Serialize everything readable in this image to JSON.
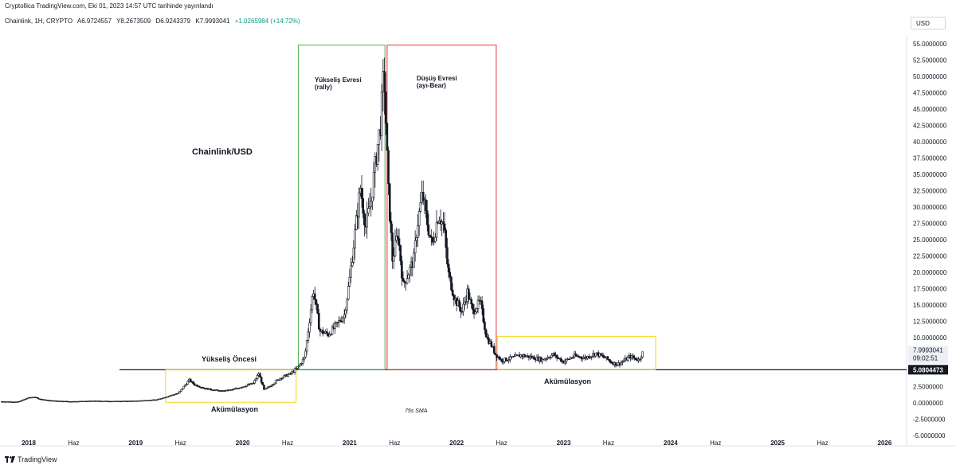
{
  "header": {
    "published": "Cryptollica TradingView.com, Eki 01, 2023 14:57 UTC tarihinde yayınlandı"
  },
  "ohlc": {
    "symbol": "Chainlink, 1H, CRYPTO",
    "open": "A6.9724557",
    "high": "Y8.2673509",
    "low": "D6.9243379",
    "close": "K7.9993041",
    "change": "+1.0265984 (+14.72%)"
  },
  "currency": "USD",
  "footer": {
    "brand": "TradingView"
  },
  "colors": {
    "green_box": "#4caf50",
    "red_box": "#e53935",
    "yellow_box": "#f5d90a",
    "candle": "#131722"
  },
  "chart_data": {
    "type": "candlestick",
    "title": "Chainlink/USD",
    "ylim": [
      -5,
      57
    ],
    "y_ticks": [
      "55.0000000",
      "52.5000000",
      "50.0000000",
      "47.5000000",
      "45.0000000",
      "42.5000000",
      "40.0000000",
      "37.5000000",
      "35.0000000",
      "32.5000000",
      "30.0000000",
      "27.5000000",
      "25.0000000",
      "22.5000000",
      "20.0000000",
      "17.5000000",
      "15.0000000",
      "12.5000000",
      "10.0000000",
      "7.5000000",
      "5.0000000",
      "2.5000000",
      "0.0000000",
      "-2.5000000",
      "-5.0000000"
    ],
    "x_ticks": [
      "2018",
      "Haz",
      "2019",
      "Haz",
      "2020",
      "Haz",
      "2021",
      "Haz",
      "2022",
      "Haz",
      "2023",
      "Haz",
      "2024",
      "Haz",
      "2025",
      "Haz",
      "2026"
    ],
    "price_labels": {
      "last": "7.9993041",
      "countdown": "09:02:51",
      "level": "5.0804473"
    },
    "horizontal_level": 5.0804473,
    "annotations": {
      "rise": [
        "Yükseliş Evresi",
        "(rally)"
      ],
      "fall": [
        "Düşüş Evresi",
        "(ayı-Bear)"
      ],
      "pre_rise": "Yükseliş Öncesi",
      "accumulation_1": "Akümülasyon",
      "accumulation_2": "Akümülasyon",
      "sma": "75s SMA"
    },
    "price_path": [
      [
        2017.75,
        0.2
      ],
      [
        2017.9,
        0.15
      ],
      [
        2018.0,
        0.8
      ],
      [
        2018.05,
        0.9
      ],
      [
        2018.1,
        0.6
      ],
      [
        2018.2,
        0.35
      ],
      [
        2018.4,
        0.2
      ],
      [
        2018.6,
        0.3
      ],
      [
        2018.8,
        0.25
      ],
      [
        2019.0,
        0.3
      ],
      [
        2019.2,
        0.5
      ],
      [
        2019.3,
        1.0
      ],
      [
        2019.4,
        1.5
      ],
      [
        2019.5,
        3.5
      ],
      [
        2019.55,
        2.8
      ],
      [
        2019.65,
        2.2
      ],
      [
        2019.8,
        1.8
      ],
      [
        2019.9,
        2.0
      ],
      [
        2020.0,
        2.5
      ],
      [
        2020.1,
        3.0
      ],
      [
        2020.15,
        4.5
      ],
      [
        2020.2,
        2.0
      ],
      [
        2020.25,
        2.5
      ],
      [
        2020.35,
        3.8
      ],
      [
        2020.45,
        4.5
      ],
      [
        2020.52,
        5.5
      ],
      [
        2020.58,
        7.0
      ],
      [
        2020.62,
        12.0
      ],
      [
        2020.66,
        17.5
      ],
      [
        2020.72,
        11.0
      ],
      [
        2020.8,
        10.5
      ],
      [
        2020.88,
        12.0
      ],
      [
        2020.95,
        13.5
      ],
      [
        2021.0,
        19.0
      ],
      [
        2021.05,
        26.0
      ],
      [
        2021.1,
        33.0
      ],
      [
        2021.15,
        27.0
      ],
      [
        2021.2,
        31.0
      ],
      [
        2021.25,
        38.0
      ],
      [
        2021.29,
        43.0
      ],
      [
        2021.32,
        51.0
      ],
      [
        2021.36,
        33.0
      ],
      [
        2021.4,
        22.0
      ],
      [
        2021.45,
        26.0
      ],
      [
        2021.5,
        18.0
      ],
      [
        2021.55,
        20.0
      ],
      [
        2021.6,
        22.0
      ],
      [
        2021.63,
        27.0
      ],
      [
        2021.68,
        32.0
      ],
      [
        2021.72,
        28.0
      ],
      [
        2021.77,
        24.0
      ],
      [
        2021.83,
        29.0
      ],
      [
        2021.88,
        27.0
      ],
      [
        2021.92,
        20.0
      ],
      [
        2021.98,
        16.0
      ],
      [
        2022.05,
        14.0
      ],
      [
        2022.1,
        17.0
      ],
      [
        2022.15,
        14.0
      ],
      [
        2022.22,
        15.5
      ],
      [
        2022.28,
        10.0
      ],
      [
        2022.32,
        9.0
      ],
      [
        2022.36,
        7.5
      ],
      [
        2022.42,
        6.5
      ],
      [
        2022.5,
        6.8
      ],
      [
        2022.6,
        7.3
      ],
      [
        2022.7,
        7.0
      ],
      [
        2022.8,
        6.6
      ],
      [
        2022.9,
        7.4
      ],
      [
        2023.0,
        6.3
      ],
      [
        2023.1,
        7.2
      ],
      [
        2023.2,
        6.9
      ],
      [
        2023.3,
        7.6
      ],
      [
        2023.4,
        6.8
      ],
      [
        2023.45,
        6.2
      ],
      [
        2023.5,
        5.9
      ],
      [
        2023.55,
        6.3
      ],
      [
        2023.62,
        7.1
      ],
      [
        2023.7,
        6.6
      ],
      [
        2023.75,
        7.99
      ]
    ]
  }
}
